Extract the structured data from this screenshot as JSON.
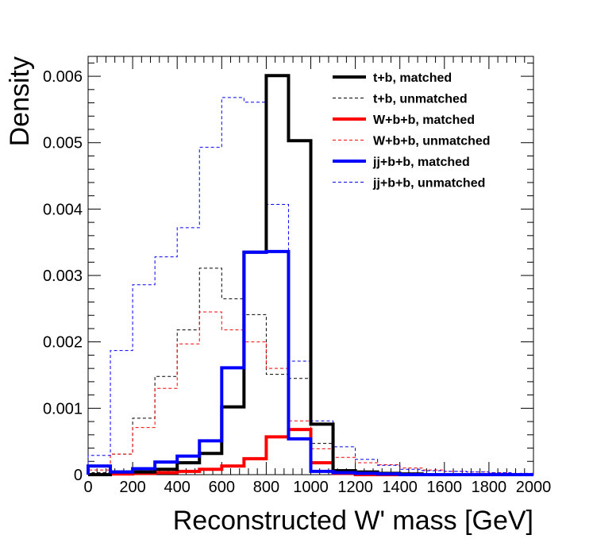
{
  "chart_data": {
    "type": "histogram",
    "title": "",
    "xlabel": "Reconstructed W' mass [GeV]",
    "ylabel": "Density",
    "xlim": [
      0,
      2000
    ],
    "ylim": [
      0,
      0.0063
    ],
    "x_ticks": [
      0,
      200,
      400,
      600,
      800,
      1000,
      1200,
      1400,
      1600,
      1800,
      2000
    ],
    "x_tick_labels": [
      "0",
      "200",
      "400",
      "600",
      "800",
      "1000",
      "1200",
      "1400",
      "1600",
      "1800",
      "2000"
    ],
    "y_ticks": [
      0,
      0.001,
      0.002,
      0.003,
      0.004,
      0.005,
      0.006
    ],
    "y_tick_labels": [
      "0",
      "0.001",
      "0.002",
      "0.003",
      "0.004",
      "0.005",
      "0.006"
    ],
    "bin_edges": [
      0,
      100,
      200,
      300,
      400,
      500,
      600,
      700,
      800,
      900,
      1000,
      1100,
      1200,
      1300,
      1400,
      1500,
      1600,
      1700,
      1800,
      1900,
      2000
    ],
    "legend_position": "top-right",
    "series": [
      {
        "name": "t+b, matched",
        "color": "#000000",
        "style": "solid",
        "weight": "thick",
        "values": [
          0,
          4e-05,
          4e-05,
          8e-05,
          0.00018,
          0.00032,
          0.00102,
          0.00335,
          0.00601,
          0.00503,
          0.00076,
          6e-05,
          4e-05,
          2e-05,
          1e-05,
          0,
          0,
          0,
          0,
          0
        ]
      },
      {
        "name": "t+b, unmatched",
        "color": "#000000",
        "style": "dashed",
        "weight": "thin",
        "values": [
          3e-05,
          0.00031,
          0.00085,
          0.00148,
          0.00218,
          0.00311,
          0.00265,
          0.00241,
          0.00151,
          0.00145,
          0.00047,
          2e-05,
          1e-05,
          0,
          0,
          0,
          0,
          0,
          0,
          0
        ]
      },
      {
        "name": "W+b+b, matched",
        "color": "#ff0000",
        "style": "solid",
        "weight": "thick",
        "values": [
          0,
          1e-05,
          2e-05,
          3e-05,
          5e-05,
          8e-05,
          0.00013,
          0.00024,
          0.00057,
          0.00068,
          0.00018,
          2e-05,
          0,
          0,
          0,
          0,
          0,
          0,
          0,
          0
        ]
      },
      {
        "name": "W+b+b, unmatched",
        "color": "#ff0000",
        "style": "dashed",
        "weight": "thin",
        "values": [
          7e-05,
          0.00031,
          0.00071,
          0.0013,
          0.00197,
          0.00245,
          0.00218,
          0.002,
          0.0016,
          0.00081,
          0.00039,
          0.00026,
          0.00018,
          0.00015,
          0.0001,
          7e-05,
          5e-05,
          4e-05,
          3e-05,
          2e-05
        ]
      },
      {
        "name": "jj+b+b, matched",
        "color": "#0000ff",
        "style": "solid",
        "weight": "thick",
        "values": [
          0.00013,
          4e-05,
          9e-05,
          0.00019,
          0.00028,
          0.00051,
          0.00161,
          0.00335,
          0.00336,
          0.00054,
          5e-05,
          3e-05,
          2e-05,
          1e-05,
          0,
          0,
          0,
          0,
          0,
          0
        ]
      },
      {
        "name": "jj+b+b, unmatched",
        "color": "#0000ff",
        "style": "dashed",
        "weight": "thin",
        "values": [
          0.00029,
          0.00187,
          0.00286,
          0.00328,
          0.00372,
          0.00493,
          0.00568,
          0.00561,
          0.00407,
          0.00171,
          0.00081,
          0.00042,
          0.00023,
          0.00014,
          8e-05,
          6e-05,
          5e-05,
          4e-05,
          3e-05,
          2e-05
        ]
      }
    ]
  }
}
